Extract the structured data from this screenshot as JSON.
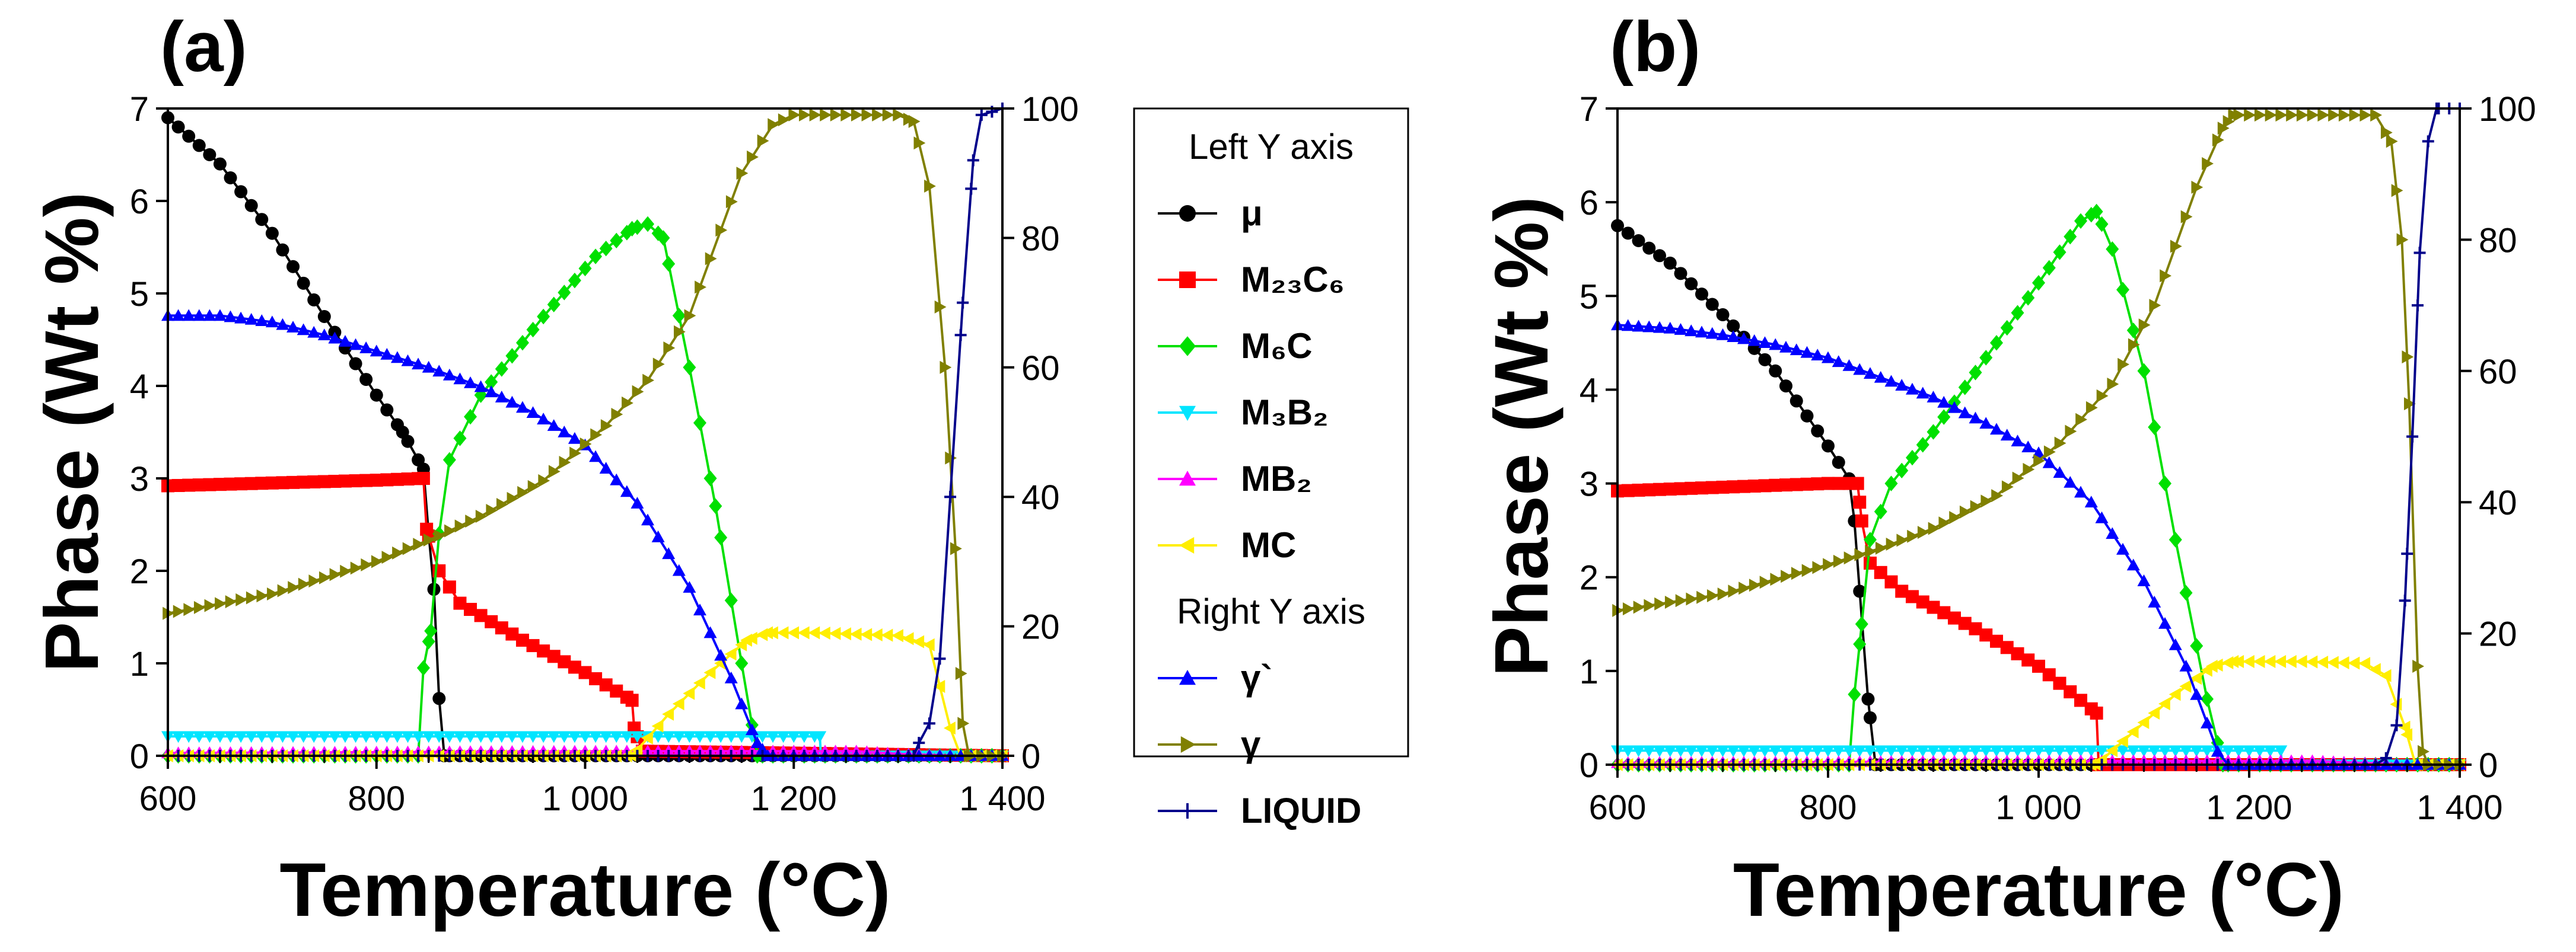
{
  "figure": {
    "legend": {
      "left_header": "Left Y axis",
      "right_header": "Right Y axis",
      "entries": [
        {
          "key": "mu",
          "label": "μ",
          "axis": "left",
          "color": "#000000",
          "marker": "circle"
        },
        {
          "key": "m23c6",
          "label": "M₂₃C₆",
          "axis": "left",
          "color": "#ff0000",
          "marker": "square"
        },
        {
          "key": "m6c",
          "label": "M₆C",
          "axis": "left",
          "color": "#00e000",
          "marker": "diamond"
        },
        {
          "key": "m3b2",
          "label": "M₃B₂",
          "axis": "left",
          "color": "#00e5ff",
          "marker": "triangle-down"
        },
        {
          "key": "mb2",
          "label": "MB₂",
          "axis": "left",
          "color": "#ff00ff",
          "marker": "triangle-up"
        },
        {
          "key": "mc",
          "label": "MC",
          "axis": "left",
          "color": "#ffee00",
          "marker": "triangle-left"
        },
        {
          "key": "gp",
          "label": "γ`",
          "axis": "right",
          "color": "#0000ff",
          "marker": "triangle-up"
        },
        {
          "key": "g",
          "label": "γ",
          "axis": "right",
          "color": "#808000",
          "marker": "triangle-right"
        },
        {
          "key": "liq",
          "label": "LIQUID",
          "axis": "right",
          "color": "#00008b",
          "marker": "plus"
        }
      ]
    }
  },
  "chart_data": [
    {
      "panel_label": "(a)",
      "type": "line",
      "xlabel": "Temperature (°C)",
      "ylabel": "Phase (Wt %)",
      "xlim": [
        600,
        1400
      ],
      "ylim_left": [
        0,
        7
      ],
      "ylim_right": [
        0,
        100
      ],
      "xticks": [
        600,
        800,
        1000,
        1200,
        1400
      ],
      "xtick_labels": [
        "600",
        "800",
        "1 000",
        "1 200",
        "1 400"
      ],
      "yticks_left": [
        0,
        1,
        2,
        3,
        4,
        5,
        6,
        7
      ],
      "ytick_labels_left": [
        "0",
        "1",
        "2",
        "3",
        "4",
        "5",
        "6",
        "7"
      ],
      "yticks_right": [
        0,
        20,
        40,
        60,
        80,
        100
      ],
      "ytick_labels_right": [
        "0",
        "20",
        "40",
        "60",
        "80",
        "100"
      ],
      "series": [
        {
          "key": "mu",
          "axis": "left",
          "points": [
            [
              600,
              6.9
            ],
            [
              650,
              6.4
            ],
            [
              700,
              5.65
            ],
            [
              750,
              4.75
            ],
            [
              800,
              3.9
            ],
            [
              825,
              3.5
            ],
            [
              845,
              3.1
            ],
            [
              850,
              2.4
            ],
            [
              855,
              1.8
            ],
            [
              860,
              0.62
            ],
            [
              865,
              0.0
            ]
          ]
        },
        {
          "key": "m23c6",
          "axis": "left",
          "points": [
            [
              600,
              2.92
            ],
            [
              700,
              2.95
            ],
            [
              800,
              2.98
            ],
            [
              845,
              3.0
            ],
            [
              848,
              2.45
            ],
            [
              860,
              2.0
            ],
            [
              880,
              1.65
            ],
            [
              940,
              1.25
            ],
            [
              1000,
              0.9
            ],
            [
              1045,
              0.6
            ],
            [
              1047,
              0.3
            ],
            [
              1055,
              0.05
            ],
            [
              1400,
              0.0
            ]
          ]
        },
        {
          "key": "m6c",
          "axis": "left",
          "points": [
            [
              600,
              0.0
            ],
            [
              840,
              0.0
            ],
            [
              845,
              0.95
            ],
            [
              852,
              1.35
            ],
            [
              860,
              2.4
            ],
            [
              870,
              3.2
            ],
            [
              900,
              3.9
            ],
            [
              960,
              4.75
            ],
            [
              1010,
              5.4
            ],
            [
              1045,
              5.7
            ],
            [
              1060,
              5.75
            ],
            [
              1075,
              5.6
            ],
            [
              1100,
              4.2
            ],
            [
              1125,
              2.7
            ],
            [
              1150,
              1.0
            ],
            [
              1165,
              0.0
            ],
            [
              1400,
              0.0
            ]
          ]
        },
        {
          "key": "m3b2",
          "axis": "left",
          "points": [
            [
              600,
              0.21
            ],
            [
              1225,
              0.21
            ],
            [
              1226,
              0.0
            ],
            [
              1400,
              0.0
            ]
          ]
        },
        {
          "key": "mb2",
          "axis": "left",
          "points": [
            [
              600,
              0.03
            ],
            [
              1050,
              0.05
            ],
            [
              1260,
              0.05
            ],
            [
              1300,
              0.02
            ],
            [
              1360,
              0.0
            ],
            [
              1400,
              0.0
            ]
          ]
        },
        {
          "key": "mc",
          "axis": "left",
          "points": [
            [
              600,
              0.0
            ],
            [
              1045,
              0.0
            ],
            [
              1080,
              0.45
            ],
            [
              1120,
              0.9
            ],
            [
              1155,
              1.25
            ],
            [
              1175,
              1.33
            ],
            [
              1220,
              1.33
            ],
            [
              1300,
              1.3
            ],
            [
              1330,
              1.2
            ],
            [
              1350,
              0.3
            ],
            [
              1360,
              0.0
            ],
            [
              1400,
              0.0
            ]
          ]
        },
        {
          "key": "gp",
          "axis": "right",
          "points": [
            [
              600,
              68
            ],
            [
              650,
              68
            ],
            [
              700,
              67
            ],
            [
              750,
              65
            ],
            [
              800,
              62.5
            ],
            [
              850,
              60
            ],
            [
              900,
              57
            ],
            [
              950,
              53
            ],
            [
              1000,
              48
            ],
            [
              1050,
              39
            ],
            [
              1100,
              26
            ],
            [
              1140,
              12
            ],
            [
              1165,
              2
            ],
            [
              1175,
              0
            ],
            [
              1400,
              0
            ]
          ]
        },
        {
          "key": "g",
          "axis": "right",
          "points": [
            [
              600,
              22
            ],
            [
              700,
              25
            ],
            [
              800,
              30
            ],
            [
              860,
              34
            ],
            [
              900,
              37
            ],
            [
              960,
              42.5
            ],
            [
              1020,
              51
            ],
            [
              1060,
              58
            ],
            [
              1100,
              68
            ],
            [
              1150,
              90
            ],
            [
              1180,
              97.5
            ],
            [
              1200,
              99
            ],
            [
              1300,
              99
            ],
            [
              1315,
              98
            ],
            [
              1330,
              88
            ],
            [
              1345,
              60
            ],
            [
              1355,
              32
            ],
            [
              1362,
              5
            ],
            [
              1368,
              0
            ],
            [
              1400,
              0
            ]
          ]
        },
        {
          "key": "liq",
          "axis": "right",
          "points": [
            [
              600,
              0
            ],
            [
              1315,
              0
            ],
            [
              1320,
              2
            ],
            [
              1330,
              5
            ],
            [
              1340,
              15
            ],
            [
              1350,
              40
            ],
            [
              1362,
              70
            ],
            [
              1372,
              92
            ],
            [
              1380,
              99
            ],
            [
              1400,
              100
            ]
          ]
        }
      ]
    },
    {
      "panel_label": "(b)",
      "type": "line",
      "xlabel": "Temperature (°C)",
      "ylabel": "Phase (Wt %)",
      "xlim": [
        600,
        1400
      ],
      "ylim_left": [
        0,
        7
      ],
      "ylim_right": [
        0,
        100
      ],
      "xticks": [
        600,
        800,
        1000,
        1200,
        1400
      ],
      "xtick_labels": [
        "600",
        "800",
        "1 000",
        "1 200",
        "1 400"
      ],
      "yticks_left": [
        0,
        1,
        2,
        3,
        4,
        5,
        6,
        7
      ],
      "ytick_labels_left": [
        "0",
        "1",
        "2",
        "3",
        "4",
        "5",
        "6",
        "7"
      ],
      "yticks_right": [
        0,
        20,
        40,
        60,
        80,
        100
      ],
      "ytick_labels_right": [
        "0",
        "20",
        "40",
        "60",
        "80",
        "100"
      ],
      "series": [
        {
          "key": "mu",
          "axis": "left",
          "points": [
            [
              600,
              5.75
            ],
            [
              650,
              5.35
            ],
            [
              700,
              4.8
            ],
            [
              750,
              4.2
            ],
            [
              800,
              3.4
            ],
            [
              820,
              3.05
            ],
            [
              825,
              2.6
            ],
            [
              830,
              1.85
            ],
            [
              838,
              0.7
            ],
            [
              845,
              0.0
            ]
          ]
        },
        {
          "key": "m23c6",
          "axis": "left",
          "points": [
            [
              600,
              2.92
            ],
            [
              700,
              2.96
            ],
            [
              800,
              3.0
            ],
            [
              828,
              3.0
            ],
            [
              832,
              2.6
            ],
            [
              840,
              2.15
            ],
            [
              870,
              1.85
            ],
            [
              940,
              1.45
            ],
            [
              1000,
              1.05
            ],
            [
              1055,
              0.55
            ],
            [
              1057,
              0.0
            ],
            [
              1400,
              0.0
            ]
          ]
        },
        {
          "key": "m6c",
          "axis": "left",
          "points": [
            [
              600,
              0.0
            ],
            [
              820,
              0.0
            ],
            [
              825,
              0.75
            ],
            [
              832,
              1.5
            ],
            [
              840,
              2.4
            ],
            [
              860,
              3.0
            ],
            [
              900,
              3.55
            ],
            [
              960,
              4.5
            ],
            [
              1010,
              5.3
            ],
            [
              1040,
              5.8
            ],
            [
              1055,
              5.9
            ],
            [
              1070,
              5.5
            ],
            [
              1100,
              4.2
            ],
            [
              1130,
              2.4
            ],
            [
              1160,
              0.7
            ],
            [
              1175,
              0.0
            ],
            [
              1400,
              0.0
            ]
          ]
        },
        {
          "key": "m3b2",
          "axis": "left",
          "points": [
            [
              600,
              0.15
            ],
            [
              1230,
              0.15
            ],
            [
              1231,
              0.0
            ],
            [
              1400,
              0.0
            ]
          ]
        },
        {
          "key": "mb2",
          "axis": "left",
          "points": [
            [
              600,
              0.02
            ],
            [
              1060,
              0.04
            ],
            [
              1260,
              0.04
            ],
            [
              1300,
              0.02
            ],
            [
              1360,
              0.0
            ],
            [
              1400,
              0.0
            ]
          ]
        },
        {
          "key": "mc",
          "axis": "left",
          "points": [
            [
              600,
              0.0
            ],
            [
              1055,
              0.0
            ],
            [
              1090,
              0.35
            ],
            [
              1130,
              0.75
            ],
            [
              1165,
              1.05
            ],
            [
              1185,
              1.1
            ],
            [
              1250,
              1.1
            ],
            [
              1310,
              1.08
            ],
            [
              1330,
              0.95
            ],
            [
              1348,
              0.4
            ],
            [
              1358,
              0.0
            ],
            [
              1400,
              0.0
            ]
          ]
        },
        {
          "key": "gp",
          "axis": "right",
          "points": [
            [
              600,
              67
            ],
            [
              650,
              66.5
            ],
            [
              700,
              65.5
            ],
            [
              750,
              64
            ],
            [
              800,
              62
            ],
            [
              850,
              59
            ],
            [
              900,
              56
            ],
            [
              950,
              52
            ],
            [
              1000,
              47.5
            ],
            [
              1050,
              40
            ],
            [
              1100,
              28
            ],
            [
              1140,
              15
            ],
            [
              1170,
              2
            ],
            [
              1180,
              0
            ],
            [
              1400,
              0
            ]
          ]
        },
        {
          "key": "g",
          "axis": "right",
          "points": [
            [
              600,
              23.5
            ],
            [
              700,
              26
            ],
            [
              800,
              30.5
            ],
            [
              850,
              33
            ],
            [
              900,
              36
            ],
            [
              960,
              41
            ],
            [
              1020,
              49
            ],
            [
              1070,
              58
            ],
            [
              1110,
              70
            ],
            [
              1150,
              88
            ],
            [
              1175,
              97
            ],
            [
              1185,
              99
            ],
            [
              1320,
              99
            ],
            [
              1335,
              95
            ],
            [
              1345,
              80
            ],
            [
              1352,
              55
            ],
            [
              1360,
              15
            ],
            [
              1365,
              2
            ],
            [
              1370,
              0
            ],
            [
              1400,
              0
            ]
          ]
        },
        {
          "key": "liq",
          "axis": "right",
          "points": [
            [
              600,
              0
            ],
            [
              1320,
              0
            ],
            [
              1330,
              1
            ],
            [
              1340,
              6
            ],
            [
              1348,
              25
            ],
            [
              1355,
              50
            ],
            [
              1362,
              78
            ],
            [
              1370,
              95
            ],
            [
              1378,
              100
            ],
            [
              1400,
              100
            ]
          ]
        }
      ]
    }
  ]
}
